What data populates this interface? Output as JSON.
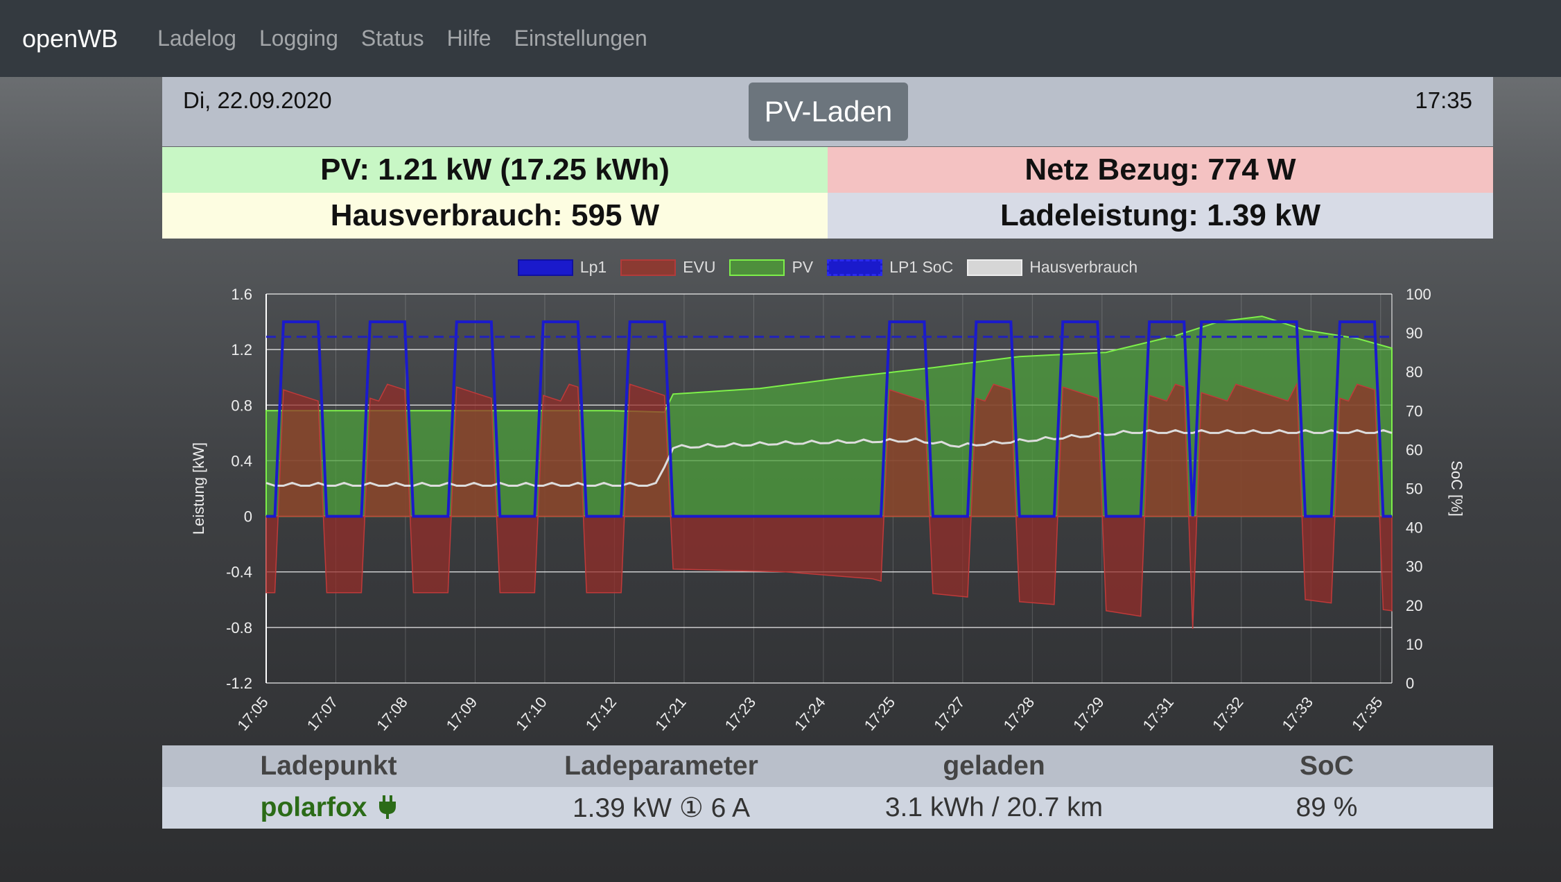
{
  "nav": {
    "brand": "openWB",
    "links": [
      "Ladelog",
      "Logging",
      "Status",
      "Hilfe",
      "Einstellungen"
    ]
  },
  "header": {
    "date": "Di, 22.09.2020",
    "mode": "PV-Laden",
    "time": "17:35"
  },
  "tiles": {
    "pv": "PV: 1.21 kW (17.25 kWh)",
    "netz": "Netz Bezug: 774 W",
    "haus": "Hausverbrauch: 595 W",
    "lade": "Ladeleistung: 1.39 kW"
  },
  "colors": {
    "pv_tile": "#c8f7c5",
    "netz_tile": "#f4c2c2",
    "haus_tile": "#fdfde1",
    "lade_tile": "#d7dbe6",
    "lp1": "#1a1acc",
    "evu": "#b33a3a",
    "pv": "#5aa843",
    "pv_line": "#7ef04a",
    "haus": "#dddddd"
  },
  "chart_data": {
    "type": "line",
    "legend": [
      "Lp1",
      "EVU",
      "PV",
      "LP1 SoC",
      "Hausverbrauch"
    ],
    "legend_position": "top",
    "grid": true,
    "ylabel": "Leistung [kW]",
    "y2label": "SoC [%]",
    "ylim": [
      -1.2,
      1.6
    ],
    "y2lim": [
      0,
      100
    ],
    "yticks": [
      "1.6",
      "1.2",
      "0.8",
      "0.4",
      "0",
      "-0.4",
      "-0.8",
      "-1.2"
    ],
    "y2ticks": [
      "100",
      "90",
      "80",
      "70",
      "60",
      "50",
      "40",
      "30",
      "20",
      "10",
      "0"
    ],
    "xticks": [
      "17:05",
      "17:07",
      "17:08",
      "17:09",
      "17:10",
      "17:12",
      "17:21",
      "17:23",
      "17:24",
      "17:25",
      "17:27",
      "17:28",
      "17:29",
      "17:31",
      "17:32",
      "17:33",
      "17:35"
    ],
    "soc_percent": 89,
    "x_points": 130,
    "pulse_on_kw": 1.4,
    "pulse_centers": [
      7,
      17,
      27,
      37,
      47,
      57,
      67,
      77,
      88,
      99,
      111,
      121
    ],
    "pulse_centers_b": [
      4,
      14,
      24,
      34,
      44,
      54,
      64,
      74,
      84,
      94,
      104,
      117,
      126
    ],
    "pv_series": [
      [
        0,
        0.76
      ],
      [
        40,
        0.76
      ],
      [
        46,
        0.75
      ],
      [
        47,
        0.88
      ],
      [
        57,
        0.92
      ],
      [
        67,
        1.0
      ],
      [
        77,
        1.07
      ],
      [
        87,
        1.15
      ],
      [
        97,
        1.18
      ],
      [
        105,
        1.3
      ],
      [
        110,
        1.4
      ],
      [
        115,
        1.44
      ],
      [
        120,
        1.34
      ],
      [
        126,
        1.28
      ],
      [
        130,
        1.21
      ]
    ],
    "haus_series": [
      [
        0,
        0.22
      ],
      [
        45,
        0.22
      ],
      [
        47,
        0.49
      ],
      [
        60,
        0.52
      ],
      [
        75,
        0.54
      ],
      [
        80,
        0.5
      ],
      [
        90,
        0.55
      ],
      [
        100,
        0.6
      ],
      [
        110,
        0.6
      ],
      [
        120,
        0.6
      ],
      [
        130,
        0.6
      ]
    ],
    "evu_base_series": [
      [
        0,
        -0.55
      ],
      [
        46,
        -0.55
      ],
      [
        47,
        -0.38
      ],
      [
        60,
        -0.4
      ],
      [
        70,
        -0.45
      ],
      [
        76,
        -0.55
      ],
      [
        84,
        -0.6
      ],
      [
        94,
        -0.65
      ],
      [
        104,
        -0.75
      ],
      [
        108,
        -0.83
      ],
      [
        114,
        -0.7
      ],
      [
        120,
        -0.6
      ],
      [
        130,
        -0.68
      ]
    ]
  },
  "table": {
    "headers": [
      "Ladepunkt",
      "Ladeparameter",
      "geladen",
      "SoC"
    ],
    "row": {
      "ladepunkt": "polarfox",
      "parameter": "1.39 kW ① 6 A",
      "geladen": "3.1 kWh / 20.7 km",
      "soc": "89 %"
    }
  }
}
